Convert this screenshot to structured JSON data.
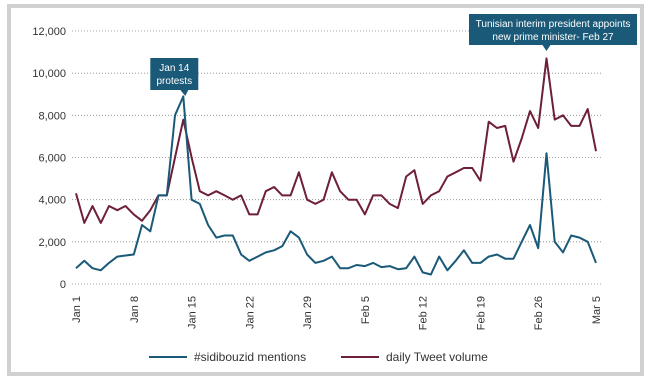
{
  "colors": {
    "mentions": "#1a5a78",
    "volume": "#6e1f3a",
    "annotation_bg": "#1a5a78",
    "grid": "#888888"
  },
  "chart_data": {
    "type": "line",
    "ylim": [
      0,
      12000
    ],
    "y_ticks": [
      "0",
      "2,000",
      "4,000",
      "6,000",
      "8,000",
      "10,000",
      "12,000"
    ],
    "x_ticks": [
      {
        "label": "Jan 1",
        "day": 0
      },
      {
        "label": "Jan 8",
        "day": 7
      },
      {
        "label": "Jan 15",
        "day": 14
      },
      {
        "label": "Jan 22",
        "day": 21
      },
      {
        "label": "Jan 29",
        "day": 28
      },
      {
        "label": "Feb 5",
        "day": 35
      },
      {
        "label": "Feb 12",
        "day": 42
      },
      {
        "label": "Feb 19",
        "day": 49
      },
      {
        "label": "Feb 26",
        "day": 56
      },
      {
        "label": "Mar 5",
        "day": 63
      }
    ],
    "series": [
      {
        "name": "#sidibouzid mentions",
        "values": [
          750,
          1100,
          750,
          650,
          1000,
          1300,
          1350,
          1400,
          2800,
          2500,
          4200,
          4200,
          8000,
          8900,
          4000,
          3800,
          2800,
          2200,
          2300,
          2300,
          1400,
          1100,
          1300,
          1500,
          1600,
          1800,
          2500,
          2200,
          1400,
          1000,
          1100,
          1300,
          750,
          750,
          900,
          850,
          1000,
          800,
          850,
          700,
          750,
          1300,
          550,
          450,
          1300,
          650,
          1100,
          1600,
          1000,
          1000,
          1300,
          1400,
          1200,
          1200,
          2000,
          2800,
          1700,
          6200,
          2000,
          1500,
          2300,
          2200,
          2000,
          1000
        ]
      },
      {
        "name": "daily Tweet volume",
        "values": [
          4300,
          2900,
          3700,
          2900,
          3700,
          3500,
          3700,
          3300,
          3000,
          3500,
          4200,
          4200,
          6000,
          7800,
          6000,
          4400,
          4200,
          4400,
          4200,
          4000,
          4200,
          3300,
          3300,
          4400,
          4600,
          4200,
          4200,
          5300,
          4000,
          3800,
          4000,
          5300,
          4400,
          4000,
          4000,
          3300,
          4200,
          4200,
          3800,
          3600,
          5100,
          5400,
          3800,
          4200,
          4400,
          5100,
          5300,
          5500,
          5500,
          4900,
          7700,
          7400,
          7500,
          5800,
          6900,
          8200,
          7400,
          10700,
          7800,
          8000,
          7500,
          7500,
          8300,
          6300
        ]
      }
    ],
    "annotations": [
      {
        "lines": [
          "Jan 14",
          "protests"
        ],
        "day": 13
      },
      {
        "lines": [
          "Tunisian interim president appoints",
          "new prime minister- Feb 27"
        ],
        "day": 57
      }
    ]
  }
}
